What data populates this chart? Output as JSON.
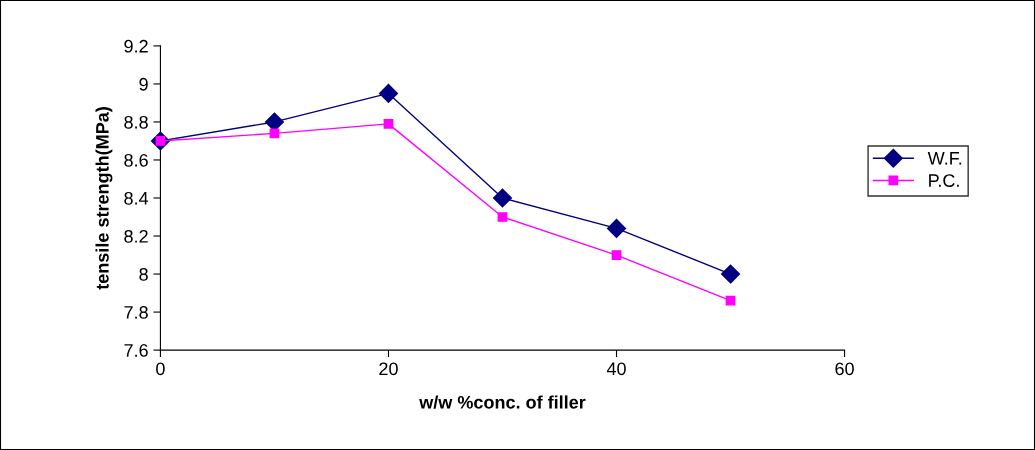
{
  "chart_data": {
    "type": "line",
    "xlabel": "w/w %conc. of filler",
    "ylabel": "tensile strength(MPa)",
    "xlim": [
      0,
      60
    ],
    "xticks": [
      0,
      20,
      40,
      60
    ],
    "ylim": [
      7.6,
      9.2
    ],
    "yticks": [
      7.6,
      7.8,
      8,
      8.2,
      8.4,
      8.6,
      8.8,
      9,
      9.2
    ],
    "x": [
      0,
      10,
      20,
      30,
      40,
      50
    ],
    "series": [
      {
        "name": "W.F.",
        "color": "#000080",
        "marker": "diamond",
        "values": [
          8.7,
          8.8,
          8.95,
          8.4,
          8.24,
          8.0
        ]
      },
      {
        "name": "P.C.",
        "color": "#ff00ff",
        "marker": "square",
        "values": [
          8.7,
          8.74,
          8.79,
          8.3,
          8.1,
          7.86
        ]
      }
    ],
    "grid": false,
    "legend": "right",
    "line_style": "solid"
  }
}
